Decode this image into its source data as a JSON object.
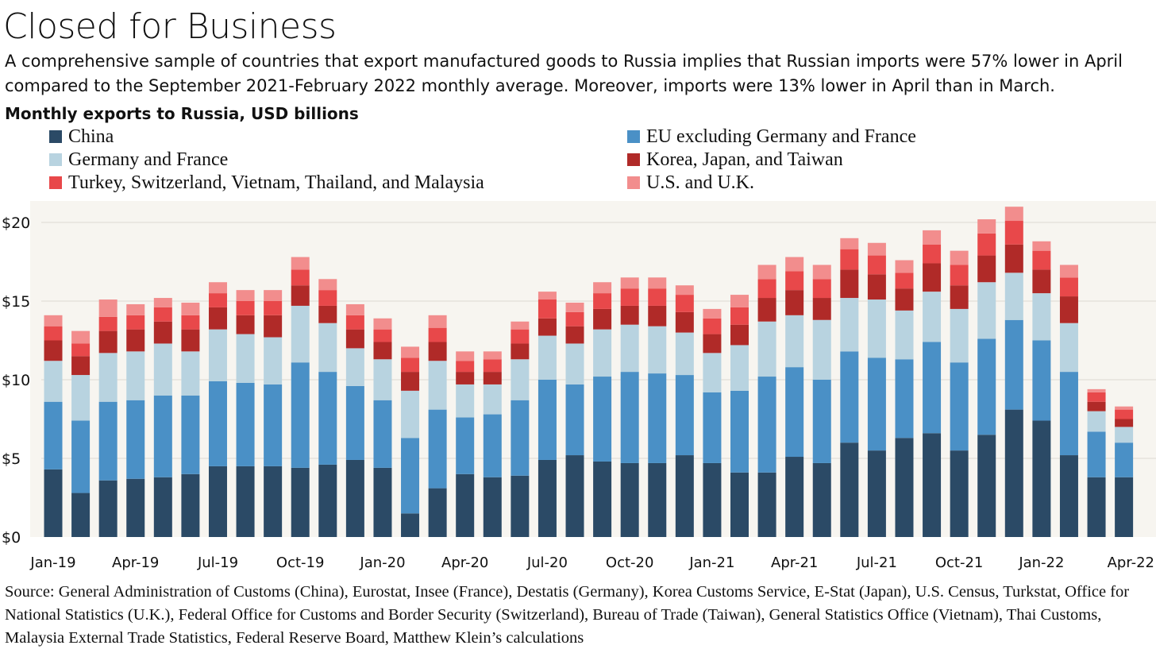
{
  "title": "Closed for Business",
  "subtitle": "A comprehensive sample of countries that export manufactured goods to Russia implies that Russian imports were 57% lower in April compared to the September 2021-February 2022 monthly average. Moreover, imports were 13% lower in April than in March.",
  "units_label": "Monthly exports to Russia, USD billions",
  "source": "Source: General Administration of Customs (China), Eurostat, Insee (France), Destatis (Germany), Korea Customs Service, E-Stat (Japan), U.S. Census, Turkstat, Office for National Statistics (U.K.), Federal Office for Customs and Border Security (Switzerland), Bureau of Trade (Taiwan), General Statistics Office (Vietnam), Thai Customs, Malaysia External Trade Statistics, Federal Reserve Board, Matthew Klein’s calculations",
  "colors": {
    "China": "#2b4a66",
    "EU excluding Germany and France": "#4a90c6",
    "Germany and France": "#b8d3e0",
    "Korea, Japan, and Taiwan": "#b02a28",
    "Turkey, Switzerland, Vietnam, Thailand, and Malaysia": "#e8484a",
    "U.S. and U.K.": "#f28d8d",
    "plot_background": "#f7f5f0"
  },
  "legend": [
    "China",
    "EU excluding Germany and France",
    "Germany and France",
    "Korea, Japan, and Taiwan",
    "Turkey, Switzerland, Vietnam, Thailand, and Malaysia",
    "U.S. and U.K."
  ],
  "chart_data": {
    "type": "bar",
    "stacked": true,
    "grid": true,
    "legend_placement": "top",
    "ylim": [
      0,
      21
    ],
    "yticks": [
      0,
      5,
      10,
      15,
      20
    ],
    "ytick_labels": [
      "$0",
      "$5",
      "$10",
      "$15",
      "$20"
    ],
    "xtick_labels": [
      "Jan-19",
      "Apr-19",
      "Jul-19",
      "Oct-19",
      "Jan-20",
      "Apr-20",
      "Jul-20",
      "Oct-20",
      "Jan-21",
      "Apr-21",
      "Jul-21",
      "Oct-21",
      "Jan-22",
      "Apr-22"
    ],
    "categories": [
      "Jan-19",
      "Feb-19",
      "Mar-19",
      "Apr-19",
      "May-19",
      "Jun-19",
      "Jul-19",
      "Aug-19",
      "Sep-19",
      "Oct-19",
      "Nov-19",
      "Dec-19",
      "Jan-20",
      "Feb-20",
      "Mar-20",
      "Apr-20",
      "May-20",
      "Jun-20",
      "Jul-20",
      "Aug-20",
      "Sep-20",
      "Oct-20",
      "Nov-20",
      "Dec-20",
      "Jan-21",
      "Feb-21",
      "Mar-21",
      "Apr-21",
      "May-21",
      "Jun-21",
      "Jul-21",
      "Aug-21",
      "Sep-21",
      "Oct-21",
      "Nov-21",
      "Dec-21",
      "Jan-22",
      "Feb-22",
      "Mar-22",
      "Apr-22"
    ],
    "series": [
      {
        "name": "China",
        "values": [
          4.3,
          2.8,
          3.6,
          3.7,
          3.8,
          4.0,
          4.5,
          4.5,
          4.5,
          4.4,
          4.6,
          4.9,
          4.4,
          1.5,
          3.1,
          4.0,
          3.8,
          3.9,
          4.9,
          5.2,
          4.8,
          4.7,
          4.7,
          5.2,
          4.7,
          4.1,
          4.1,
          5.1,
          4.7,
          6.0,
          5.5,
          6.3,
          6.6,
          5.5,
          6.5,
          8.1,
          7.4,
          5.2,
          3.8,
          3.8
        ]
      },
      {
        "name": "EU excluding Germany and France",
        "values": [
          4.3,
          4.6,
          5.0,
          5.0,
          5.2,
          5.0,
          5.4,
          5.3,
          5.2,
          6.7,
          5.9,
          4.7,
          4.3,
          4.8,
          5.0,
          3.6,
          4.0,
          4.8,
          5.1,
          4.5,
          5.4,
          5.8,
          5.7,
          5.1,
          4.5,
          5.2,
          6.1,
          5.7,
          5.3,
          5.8,
          5.9,
          5.0,
          5.8,
          5.6,
          6.1,
          5.7,
          5.1,
          5.3,
          2.9,
          2.2
        ]
      },
      {
        "name": "Germany and France",
        "values": [
          2.6,
          2.9,
          3.1,
          3.1,
          3.3,
          2.8,
          3.3,
          3.1,
          3.0,
          3.6,
          3.1,
          2.4,
          2.6,
          3.0,
          3.1,
          2.1,
          1.9,
          2.6,
          2.8,
          2.6,
          3.0,
          3.0,
          3.0,
          2.7,
          2.5,
          2.9,
          3.5,
          3.3,
          3.8,
          3.4,
          3.7,
          3.1,
          3.2,
          3.4,
          3.6,
          3.0,
          3.0,
          3.1,
          1.3,
          1.0
        ]
      },
      {
        "name": "Korea, Japan, and Taiwan",
        "values": [
          1.3,
          1.2,
          1.4,
          1.4,
          1.4,
          1.4,
          1.4,
          1.2,
          1.4,
          1.3,
          1.1,
          1.2,
          1.1,
          1.2,
          1.2,
          0.8,
          0.8,
          1.0,
          1.1,
          1.1,
          1.3,
          1.2,
          1.3,
          1.3,
          1.2,
          1.3,
          1.5,
          1.6,
          1.4,
          1.8,
          1.6,
          1.4,
          1.8,
          1.5,
          1.7,
          1.8,
          1.5,
          1.7,
          0.6,
          0.5
        ]
      },
      {
        "name": "Turkey, Switzerland, Vietnam, Thailand, and Malaysia",
        "values": [
          0.9,
          0.8,
          0.9,
          0.9,
          0.9,
          0.9,
          0.9,
          0.9,
          0.9,
          1.0,
          1.0,
          0.9,
          0.8,
          0.9,
          0.9,
          0.7,
          0.8,
          0.9,
          1.2,
          0.9,
          1.0,
          1.1,
          1.1,
          1.1,
          1.0,
          1.1,
          1.2,
          1.2,
          1.2,
          1.3,
          1.2,
          1.0,
          1.2,
          1.3,
          1.4,
          1.5,
          1.2,
          1.2,
          0.6,
          0.6
        ]
      },
      {
        "name": "U.S. and U.K.",
        "values": [
          0.7,
          0.8,
          1.1,
          0.7,
          0.6,
          0.8,
          0.7,
          0.7,
          0.7,
          0.8,
          0.7,
          0.7,
          0.7,
          0.7,
          0.8,
          0.6,
          0.5,
          0.5,
          0.5,
          0.6,
          0.7,
          0.7,
          0.7,
          0.6,
          0.6,
          0.8,
          0.9,
          0.9,
          0.9,
          0.7,
          0.8,
          0.8,
          0.9,
          0.9,
          0.9,
          0.9,
          0.6,
          0.8,
          0.2,
          0.2
        ]
      }
    ]
  }
}
